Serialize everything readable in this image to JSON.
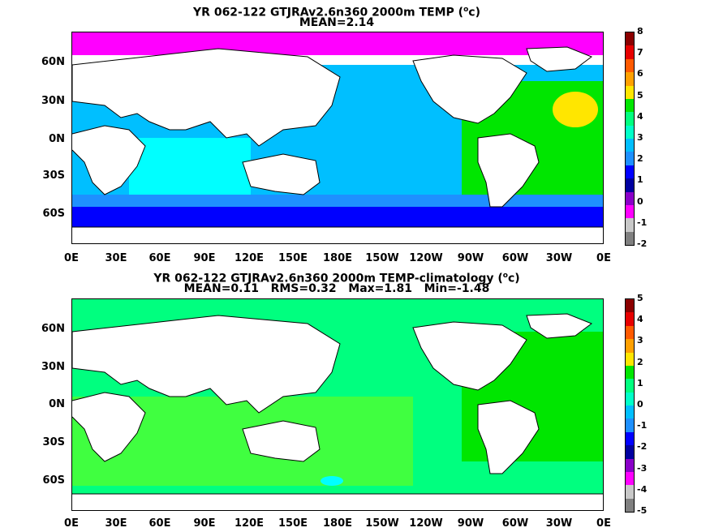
{
  "panels": [
    {
      "title_line1": "YR 062-122 GTJRAv2.6n360 2000m TEMP (",
      "title_sup": "o",
      "title_unit": "c)",
      "title_line2": "MEAN=2.14",
      "lat_labels": [
        "60N",
        "30N",
        "0N",
        "30S",
        "60S"
      ],
      "lon_labels": [
        "0E",
        "30E",
        "60E",
        "90E",
        "120E",
        "150E",
        "180E",
        "150W",
        "120W",
        "90W",
        "60W",
        "30W",
        "0E"
      ],
      "colorbar": {
        "labels": [
          "8",
          "7",
          "6",
          "5",
          "4",
          "3",
          "2",
          "1",
          "0",
          "-1",
          "-2"
        ],
        "colors": [
          "#8b0000",
          "#e60000",
          "#ff5a00",
          "#ffa000",
          "#ffe600",
          "#00e600",
          "#00ff7f",
          "#00ffc8",
          "#00bfff",
          "#1e90ff",
          "#0000ff",
          "#0000a0",
          "#8a00c8",
          "#ff00ff",
          "#c8c8c8",
          "#808080"
        ]
      },
      "region_colors": {
        "ocean": "#00bfff",
        "southern": "#1e90ff",
        "southern_deep": "#0000ff",
        "atlantic": "#00e600",
        "atlantic_warm": "#ffe600",
        "indian": "#00ffff",
        "arctic": "#ff00ff",
        "land": "#ffffff"
      }
    },
    {
      "title_line1": "YR 062-122 GTJRAv2.6n360 2000m TEMP-climatology (",
      "title_sup": "o",
      "title_unit": "c)",
      "title_line2": "MEAN=0.11   RMS=0.32   Max=1.81   Min=-1.48",
      "lat_labels": [
        "60N",
        "30N",
        "0N",
        "30S",
        "60S"
      ],
      "lon_labels": [
        "0E",
        "30E",
        "60E",
        "90E",
        "120E",
        "150E",
        "180E",
        "150W",
        "120W",
        "90W",
        "60W",
        "30W",
        "0E"
      ],
      "colorbar": {
        "labels": [
          "5",
          "4",
          "3",
          "2",
          "1",
          "0",
          "-1",
          "-2",
          "-3",
          "-4",
          "-5"
        ],
        "colors": [
          "#8b0000",
          "#e60000",
          "#ff5a00",
          "#ffa000",
          "#ffe600",
          "#00e600",
          "#00ff7f",
          "#00ffc8",
          "#00bfff",
          "#1e90ff",
          "#0000ff",
          "#0000a0",
          "#8a00c8",
          "#ff00ff",
          "#c8c8c8",
          "#808080"
        ]
      },
      "region_colors": {
        "ocean": "#00ff7f",
        "southern": "#40ff40",
        "atlantic": "#00e600",
        "cyan_patch": "#00ffff",
        "land": "#ffffff"
      }
    }
  ]
}
